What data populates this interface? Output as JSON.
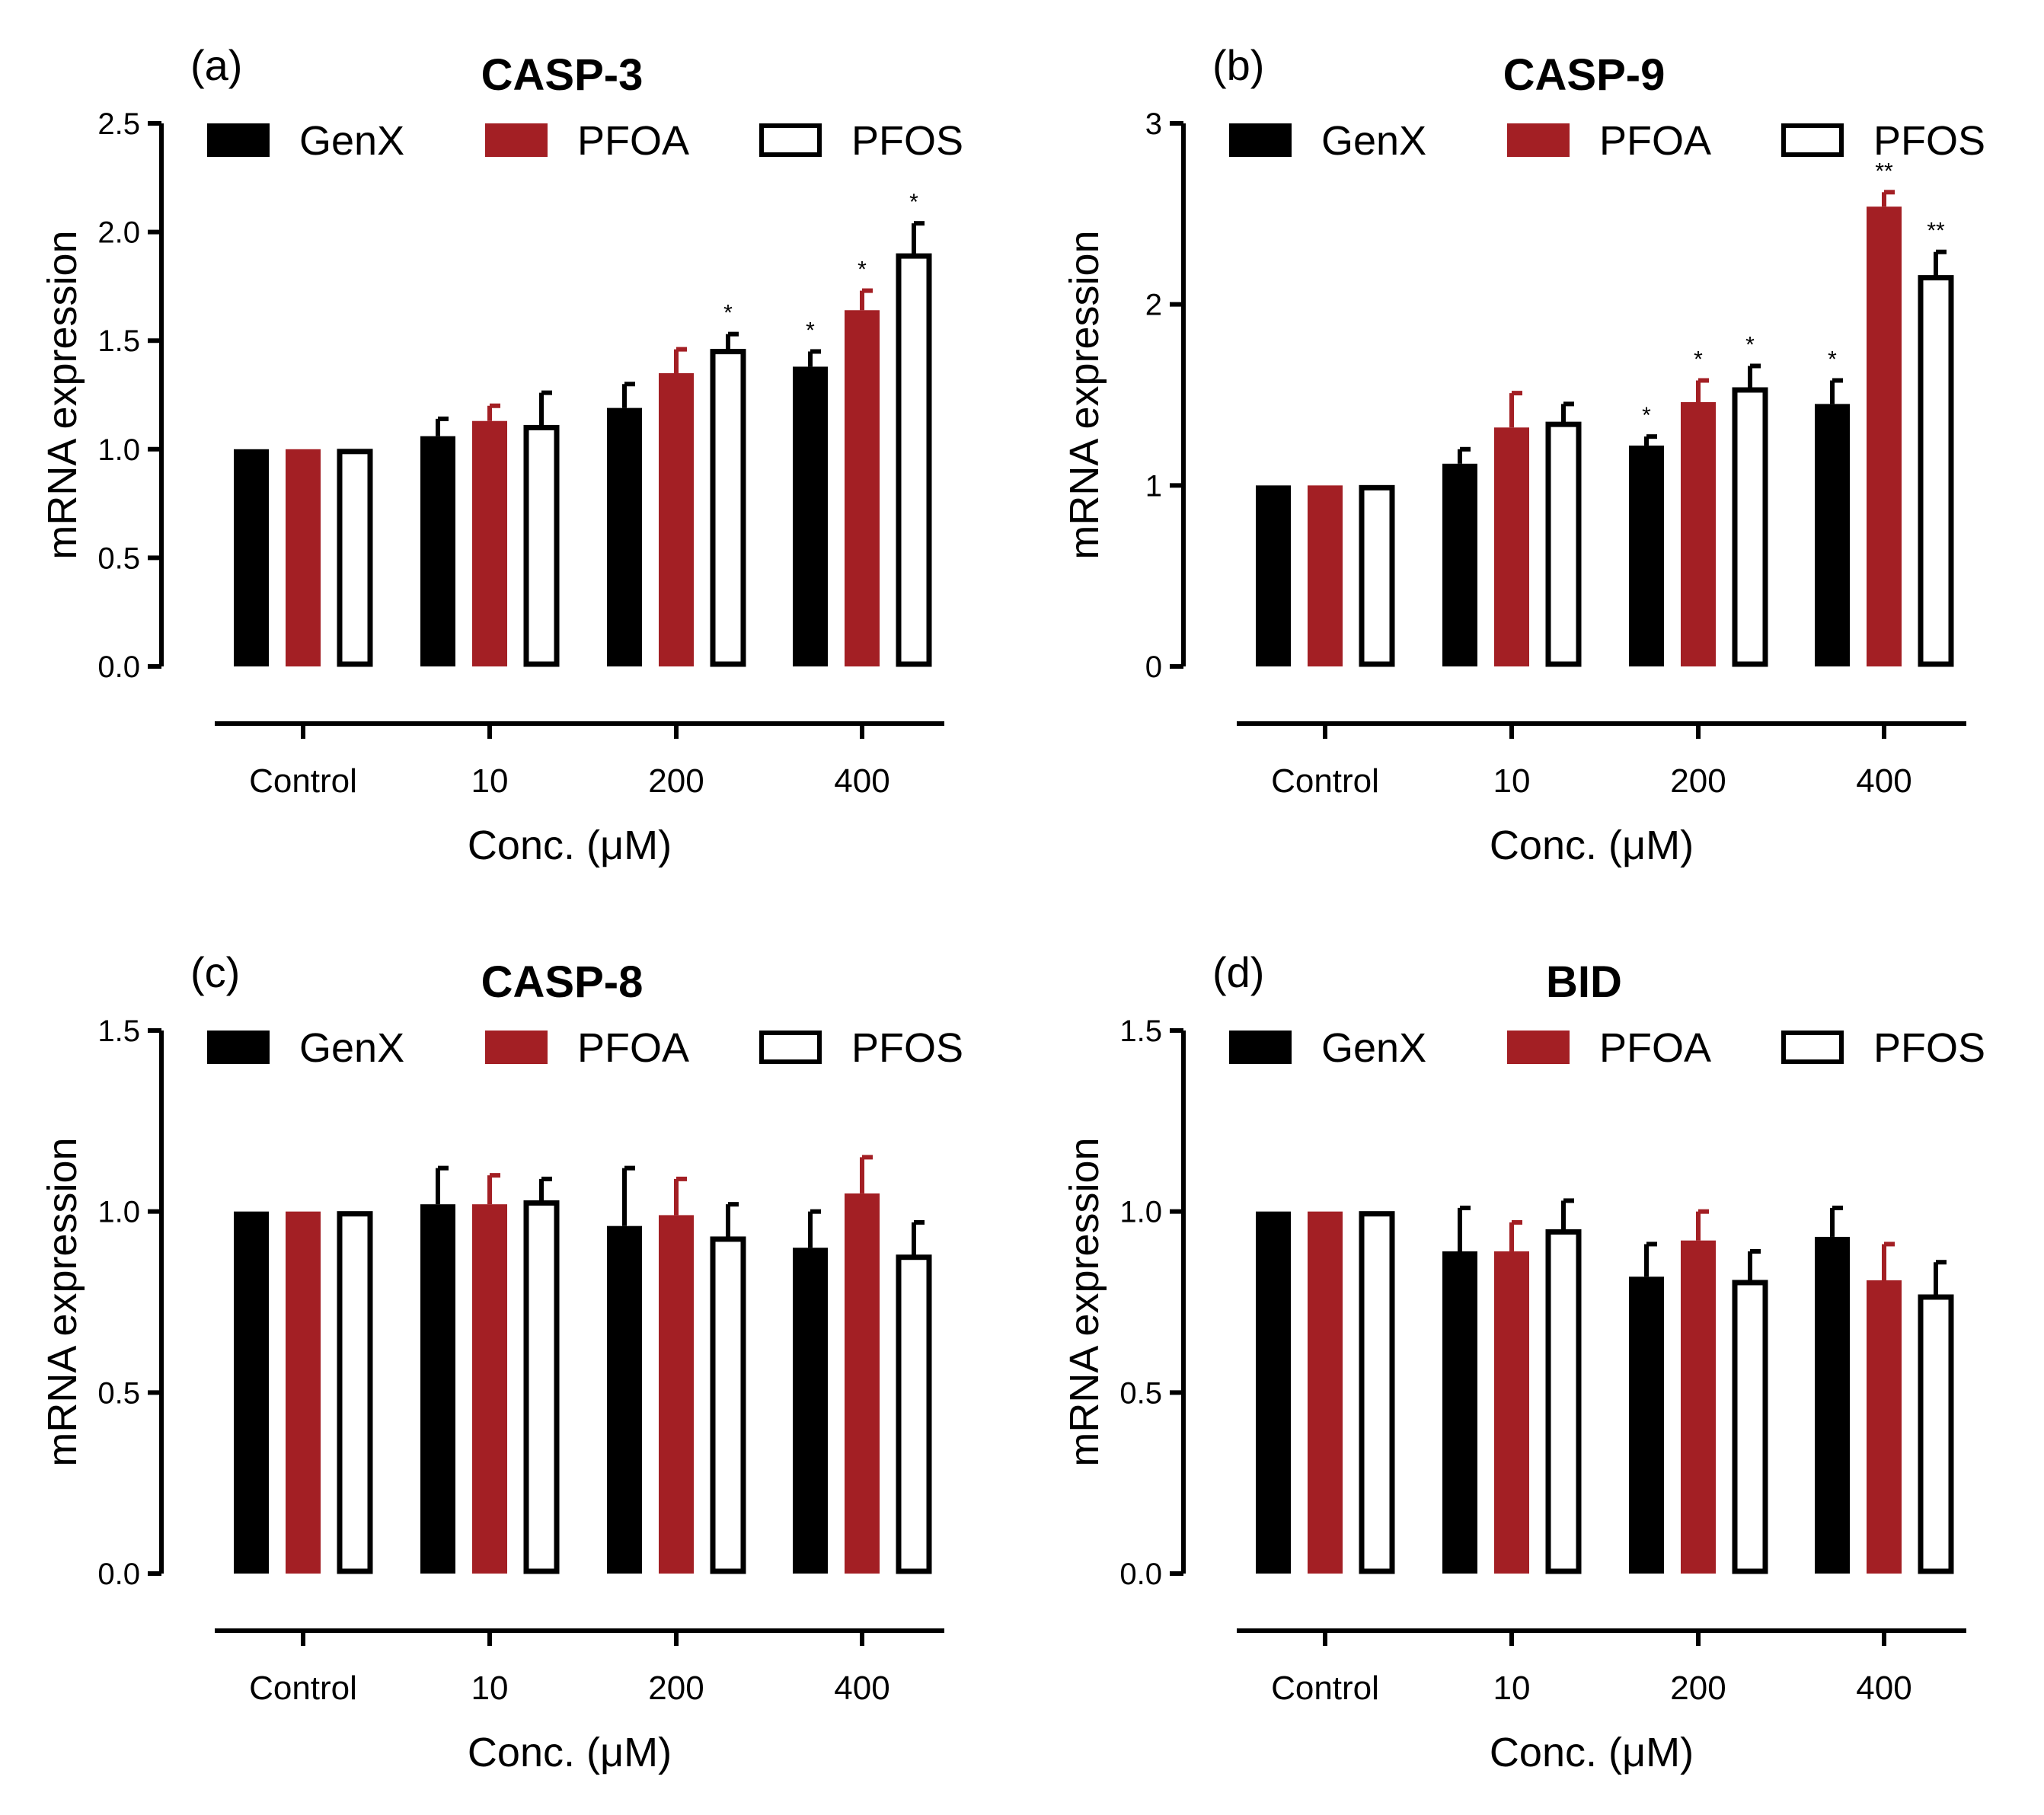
{
  "legend": [
    "GenX",
    "PFOA",
    "PFOS"
  ],
  "colors": {
    "GenX": "#000000",
    "PFOA": "#a31f24",
    "PFOS": "#ffffff",
    "outline": "#000000"
  },
  "chart_data": [
    {
      "type": "bar",
      "panel_label": "(a)",
      "title": "CASP-3",
      "xlabel": "Conc. (μM)",
      "ylabel": "mRNA expression",
      "ylim": [
        0,
        2.5
      ],
      "yticks": [
        "0.0",
        "0.5",
        "1.0",
        "1.5",
        "2.0",
        "2.5"
      ],
      "categories": [
        "Control",
        "10",
        "200",
        "400"
      ],
      "series": [
        {
          "name": "GenX",
          "values": [
            1.0,
            1.06,
            1.19,
            1.38
          ],
          "errors": [
            0,
            0.08,
            0.11,
            0.07
          ],
          "sig": [
            "",
            "",
            "",
            "*"
          ]
        },
        {
          "name": "PFOA",
          "values": [
            1.0,
            1.13,
            1.35,
            1.64
          ],
          "errors": [
            0,
            0.07,
            0.11,
            0.09
          ],
          "sig": [
            "",
            "",
            "",
            "*"
          ]
        },
        {
          "name": "PFOS",
          "values": [
            1.0,
            1.11,
            1.46,
            1.9
          ],
          "errors": [
            0,
            0.15,
            0.07,
            0.14
          ],
          "sig": [
            "",
            "",
            "*",
            "*"
          ]
        }
      ]
    },
    {
      "type": "bar",
      "panel_label": "(b)",
      "title": "CASP-9",
      "xlabel": "Conc. (μM)",
      "ylabel": "mRNA expression",
      "ylim": [
        0,
        3
      ],
      "yticks": [
        "0",
        "1",
        "2",
        "3"
      ],
      "categories": [
        "Control",
        "10",
        "200",
        "400"
      ],
      "series": [
        {
          "name": "GenX",
          "values": [
            1.0,
            1.12,
            1.22,
            1.45
          ],
          "errors": [
            0,
            0.08,
            0.05,
            0.13
          ],
          "sig": [
            "",
            "",
            "*",
            "*"
          ]
        },
        {
          "name": "PFOA",
          "values": [
            1.0,
            1.32,
            1.46,
            2.54
          ],
          "errors": [
            0,
            0.19,
            0.12,
            0.08
          ],
          "sig": [
            "",
            "",
            "*",
            "**"
          ]
        },
        {
          "name": "PFOS",
          "values": [
            1.0,
            1.35,
            1.54,
            2.16
          ],
          "errors": [
            0,
            0.1,
            0.12,
            0.13
          ],
          "sig": [
            "",
            "",
            "*",
            "**"
          ]
        }
      ]
    },
    {
      "type": "bar",
      "panel_label": "(c)",
      "title": "CASP-8",
      "xlabel": "Conc. (μM)",
      "ylabel": "mRNA expression",
      "ylim": [
        0,
        1.5
      ],
      "yticks": [
        "0.0",
        "0.5",
        "1.0",
        "1.5"
      ],
      "categories": [
        "Control",
        "10",
        "200",
        "400"
      ],
      "series": [
        {
          "name": "GenX",
          "values": [
            1.0,
            1.02,
            0.96,
            0.9
          ],
          "errors": [
            0,
            0.1,
            0.16,
            0.1
          ],
          "sig": [
            "",
            "",
            "",
            ""
          ]
        },
        {
          "name": "PFOA",
          "values": [
            1.0,
            1.02,
            0.99,
            1.05
          ],
          "errors": [
            0,
            0.08,
            0.1,
            0.1
          ],
          "sig": [
            "",
            "",
            "",
            ""
          ]
        },
        {
          "name": "PFOS",
          "values": [
            1.0,
            1.03,
            0.93,
            0.88
          ],
          "errors": [
            0,
            0.06,
            0.09,
            0.09
          ],
          "sig": [
            "",
            "",
            "",
            ""
          ]
        }
      ]
    },
    {
      "type": "bar",
      "panel_label": "(d)",
      "title": "BID",
      "xlabel": "Conc. (μM)",
      "ylabel": "mRNA expression",
      "ylim": [
        0,
        1.5
      ],
      "yticks": [
        "0.0",
        "0.5",
        "1.0",
        "1.5"
      ],
      "categories": [
        "Control",
        "10",
        "200",
        "400"
      ],
      "series": [
        {
          "name": "GenX",
          "values": [
            1.0,
            0.89,
            0.82,
            0.93
          ],
          "errors": [
            0,
            0.12,
            0.09,
            0.08
          ],
          "sig": [
            "",
            "",
            "",
            ""
          ]
        },
        {
          "name": "PFOA",
          "values": [
            1.0,
            0.89,
            0.92,
            0.81
          ],
          "errors": [
            0,
            0.08,
            0.08,
            0.1
          ],
          "sig": [
            "",
            "",
            "",
            ""
          ]
        },
        {
          "name": "PFOS",
          "values": [
            1.0,
            0.95,
            0.81,
            0.77
          ],
          "errors": [
            0,
            0.08,
            0.08,
            0.09
          ],
          "sig": [
            "",
            "",
            "",
            ""
          ]
        }
      ]
    }
  ]
}
